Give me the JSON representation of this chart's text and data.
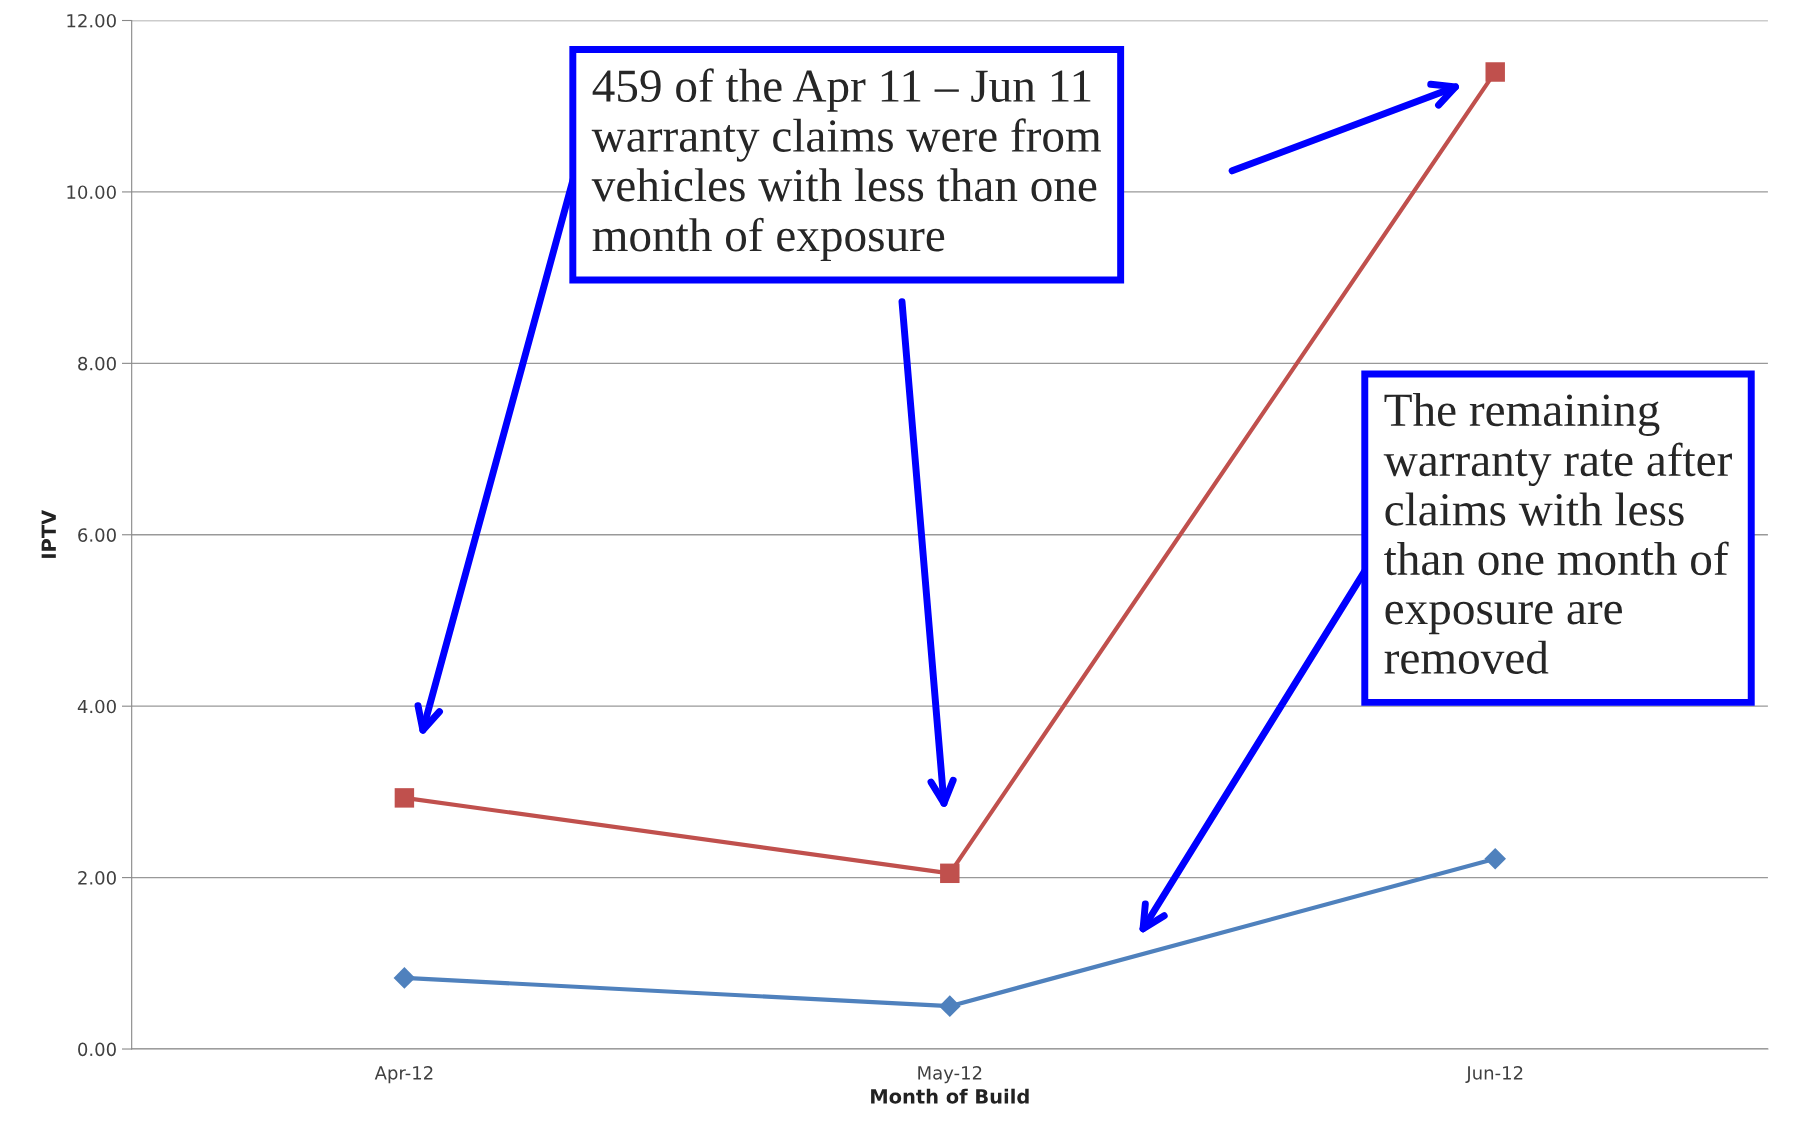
{
  "chart_data": {
    "type": "line",
    "xlabel": "Month of Build",
    "ylabel": "IPTV",
    "categories": [
      "Apr-12",
      "May-12",
      "Jun-12"
    ],
    "series": [
      {
        "color": "#c0504d",
        "marker": "square",
        "values": [
          2.93,
          2.05,
          11.4
        ]
      },
      {
        "color": "#4f81bd",
        "marker": "diamond",
        "values": [
          0.83,
          0.5,
          2.22
        ]
      }
    ],
    "ylim": [
      0,
      12
    ],
    "yticks": [
      {
        "value": 0,
        "label": "0.00"
      },
      {
        "value": 2,
        "label": "2.00"
      },
      {
        "value": 4,
        "label": "4.00"
      },
      {
        "value": 6,
        "label": "6.00"
      },
      {
        "value": 8,
        "label": "8.00"
      },
      {
        "value": 10,
        "label": "10.00"
      },
      {
        "value": 12,
        "label": "12.00"
      }
    ],
    "grid": "y",
    "annotations": [
      "459 of the Apr 11 – Jun 11\nwarranty claims were from\nvehicles with less than one\nmonth of exposure",
      "The remaining\nwarranty rate after\nclaims with less\nthan one month of\nexposure are\nremoved"
    ]
  }
}
